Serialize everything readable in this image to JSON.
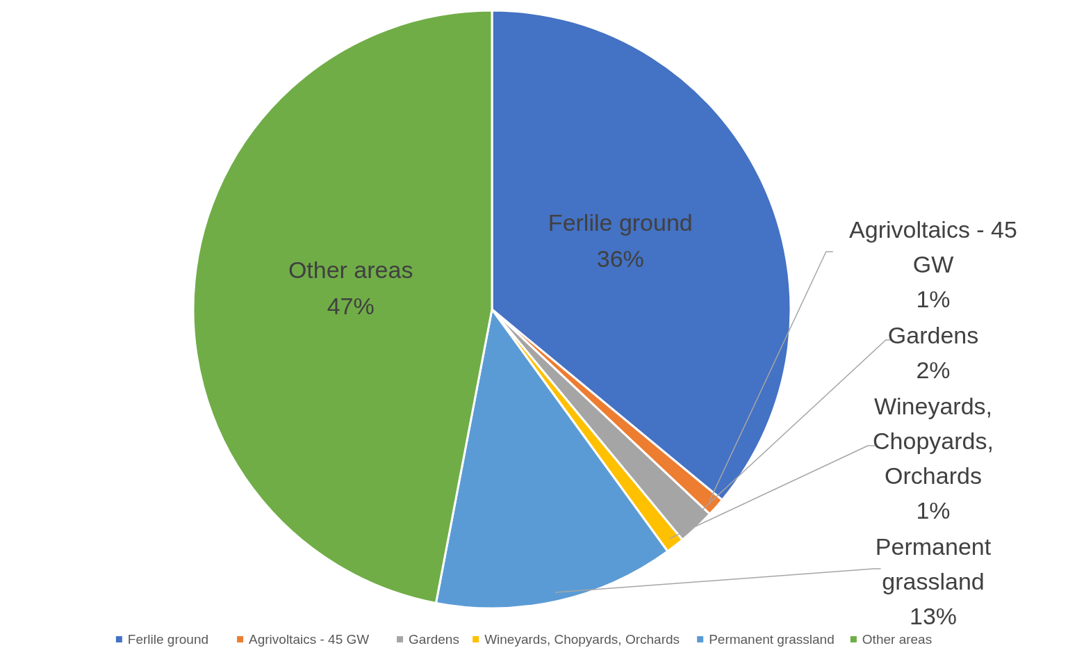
{
  "chart_data": {
    "type": "pie",
    "categories": [
      "Ferlile ground",
      "Agrivoltaics - 45 GW",
      "Gardens",
      "Wineyards, Chopyards, Orchards",
      "Permanent grassland",
      "Other areas"
    ],
    "values": [
      36,
      1,
      2,
      1,
      13,
      47
    ],
    "colors": [
      "#4472c4",
      "#ed7d31",
      "#a5a5a5",
      "#ffc000",
      "#5b9bd5",
      "#70ad47"
    ],
    "value_labels": [
      "36%",
      "1%",
      "2%",
      "1%",
      "13%",
      "47%"
    ],
    "legend": "bottom"
  }
}
